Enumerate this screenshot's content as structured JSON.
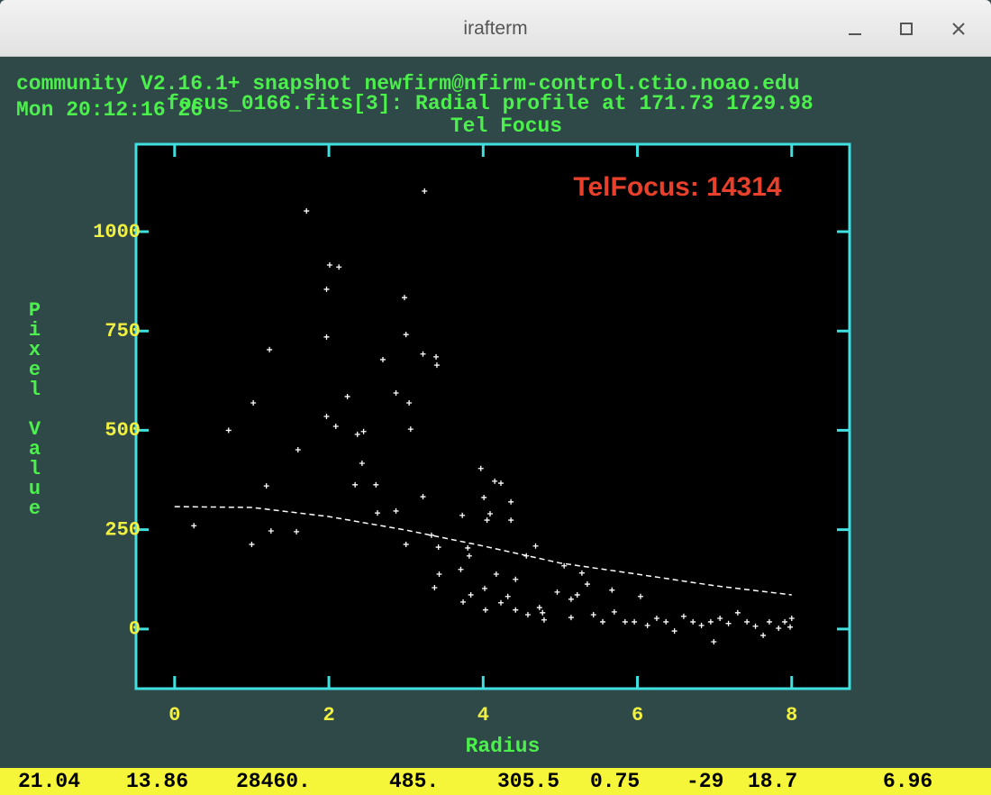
{
  "window": {
    "title": "irafterm"
  },
  "header": {
    "line1": "community V2.16.1+ snapshot newfirm@nfirm-control.ctio.noao.edu",
    "line2": "Mon 20:12:16 26",
    "plot_info": "focus_0166.fits[3]: Radial profile at 171.73 1729.98"
  },
  "chart_data": {
    "type": "scatter",
    "title": "Tel Focus",
    "annotation": "TelFocus: 14314",
    "xlabel": "Radius",
    "ylabel": "Pixel Value",
    "xlim": [
      -0.5,
      8.75
    ],
    "ylim": [
      -150,
      1220
    ],
    "xticks": [
      0,
      2,
      4,
      6,
      8
    ],
    "yticks": [
      0,
      250,
      500,
      750,
      1000
    ],
    "series": [
      {
        "mode": "markers",
        "color": "#ffffff",
        "x": [
          0.25,
          0.7,
          1.02,
          1.0,
          1.23,
          1.19,
          1.25,
          1.58,
          1.6,
          1.71,
          2.01,
          1.97,
          2.13,
          1.97,
          1.97,
          2.09,
          2.24,
          2.34,
          2.37,
          2.45,
          2.43,
          2.61,
          2.7,
          2.63,
          2.87,
          2.87,
          2.98,
          3.0,
          3.04,
          3.06,
          3.0,
          3.24,
          3.22,
          3.22,
          3.39,
          3.4,
          3.33,
          3.42,
          3.43,
          3.37,
          3.73,
          3.8,
          3.82,
          3.71,
          3.74,
          3.84,
          3.97,
          4.01,
          4.05,
          4.09,
          4.15,
          4.23,
          4.36,
          4.36,
          4.02,
          4.03,
          4.17,
          4.23,
          4.32,
          4.42,
          4.42,
          4.56,
          4.68,
          4.58,
          4.73,
          4.77,
          4.79,
          4.96,
          5.05,
          5.14,
          5.22,
          5.28,
          5.35,
          5.14,
          5.43,
          5.55,
          5.67,
          5.7,
          5.84,
          5.96,
          6.04,
          6.13,
          6.25,
          6.37,
          6.48,
          6.6,
          6.72,
          6.83,
          6.95,
          6.99,
          7.07,
          7.18,
          7.3,
          7.42,
          7.53,
          7.63,
          7.71,
          7.83,
          7.91,
          7.98,
          8.0
        ],
        "values": [
          260,
          500,
          569,
          213,
          703,
          360,
          247,
          245,
          451,
          1052,
          916,
          855,
          911,
          735,
          535,
          510,
          585,
          363,
          490,
          497,
          417,
          363,
          678,
          292,
          594,
          297,
          834,
          741,
          569,
          503,
          213,
          1102,
          692,
          333,
          685,
          664,
          236,
          206,
          138,
          104,
          286,
          204,
          184,
          150,
          68,
          86,
          404,
          331,
          274,
          290,
          372,
          367,
          320,
          274,
          102,
          48,
          138,
          66,
          82,
          125,
          48,
          184,
          209,
          36,
          54,
          41,
          23,
          93,
          159,
          75,
          86,
          141,
          113,
          29,
          36,
          18,
          98,
          43,
          18,
          18,
          82,
          9,
          27,
          18,
          -5,
          32,
          18,
          9,
          18,
          -32,
          27,
          14,
          41,
          18,
          7,
          -16,
          18,
          2,
          18,
          5,
          27
        ]
      },
      {
        "mode": "dashed-line",
        "color": "#ffffff",
        "x": [
          0,
          1,
          2,
          3,
          4,
          5,
          6,
          7,
          8
        ],
        "values": [
          308,
          306,
          283,
          249,
          209,
          166,
          138,
          109,
          86
        ]
      }
    ]
  },
  "status_bar": {
    "fields": [
      "21.04",
      "13.86",
      "28460.",
      "485.",
      "305.5",
      "0.75",
      "-29",
      "18.7",
      "6.96"
    ]
  }
}
